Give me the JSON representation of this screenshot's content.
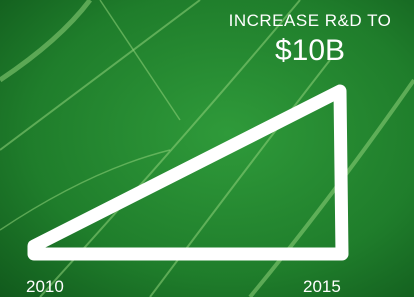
{
  "headline": {
    "line1": "INCREASE R&D TO",
    "amount": "$10B"
  },
  "labels": {
    "start": "2010",
    "end": "2015"
  }
}
